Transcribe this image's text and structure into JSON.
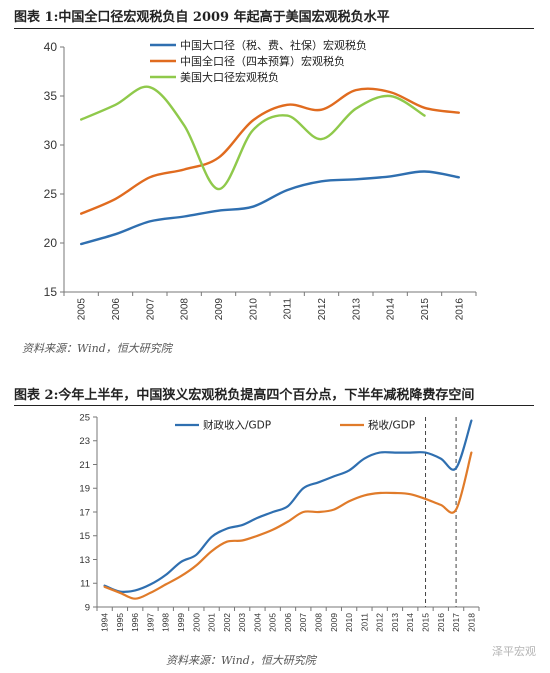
{
  "figure1": {
    "title": "图表 1:中国全口径宏观税负自 2009 年起高于美国宏观税负水平",
    "source": "资料来源：Wind，恒大研究院"
  },
  "figure2": {
    "title": "图表 2:今年上半年，中国狭义宏观税负提高四个百分点，下半年减税降费存空间",
    "source": "资料来源：Wind，恒大研究院"
  },
  "watermark": "泽平宏观",
  "chart_data": [
    {
      "type": "line",
      "title": "图表 1:中国全口径宏观税负自 2009 年起高于美国宏观税负水平",
      "x": [
        "2005",
        "2006",
        "2007",
        "2008",
        "2009",
        "2010",
        "2011",
        "2012",
        "2013",
        "2014",
        "2015",
        "2016"
      ],
      "ylim": [
        15,
        40
      ],
      "yticks": [
        15,
        20,
        25,
        30,
        35,
        40
      ],
      "legend_position": "top-left",
      "grid": false,
      "series": [
        {
          "name": "中国大口径（税、费、社保）宏观税负",
          "color": "#2f6fb0",
          "values": [
            19.9,
            20.9,
            22.2,
            22.7,
            23.3,
            23.7,
            25.4,
            26.3,
            26.5,
            26.8,
            27.3,
            26.7
          ]
        },
        {
          "name": "中国全口径（四本预算）宏观税负",
          "color": "#e06b1f",
          "values": [
            23.0,
            24.5,
            26.7,
            27.5,
            28.7,
            32.5,
            34.1,
            33.6,
            35.6,
            35.4,
            33.8,
            33.3
          ]
        },
        {
          "name": "美国大口径宏观税负",
          "color": "#8fc94b",
          "values": [
            32.6,
            34.1,
            35.9,
            32.0,
            25.5,
            31.5,
            33.0,
            30.6,
            33.7,
            35.0,
            33.0,
            null
          ]
        }
      ]
    },
    {
      "type": "line",
      "title": "图表 2:今年上半年，中国狭义宏观税负提高四个百分点，下半年减税降费存空间",
      "x": [
        "1994",
        "1995",
        "1996",
        "1997",
        "1998",
        "1999",
        "2000",
        "2001",
        "2002",
        "2003",
        "2004",
        "2005",
        "2006",
        "2007",
        "2008",
        "2009",
        "2010",
        "2011",
        "2012",
        "2013",
        "2014",
        "2015",
        "2016",
        "2017",
        "2018"
      ],
      "ylim": [
        9,
        25
      ],
      "yticks": [
        9,
        11,
        13,
        15,
        17,
        19,
        21,
        23,
        25
      ],
      "legend_position": "top",
      "grid": false,
      "vlines": [
        "2015",
        "2017"
      ],
      "series": [
        {
          "name": "财政收入/GDP",
          "color": "#2f6fb0",
          "values": [
            10.8,
            10.3,
            10.4,
            10.9,
            11.7,
            12.8,
            13.4,
            14.9,
            15.6,
            15.9,
            16.5,
            17.0,
            17.5,
            19.0,
            19.5,
            20.0,
            20.5,
            21.5,
            22.0,
            22.0,
            22.0,
            22.0,
            21.5,
            20.7,
            24.7
          ]
        },
        {
          "name": "税收/GDP",
          "color": "#e07b2a",
          "values": [
            10.7,
            10.2,
            9.7,
            10.2,
            10.9,
            11.6,
            12.5,
            13.7,
            14.5,
            14.6,
            15.0,
            15.5,
            16.2,
            17.0,
            17.0,
            17.2,
            17.9,
            18.4,
            18.6,
            18.6,
            18.5,
            18.1,
            17.6,
            17.2,
            22.0
          ]
        }
      ]
    }
  ]
}
